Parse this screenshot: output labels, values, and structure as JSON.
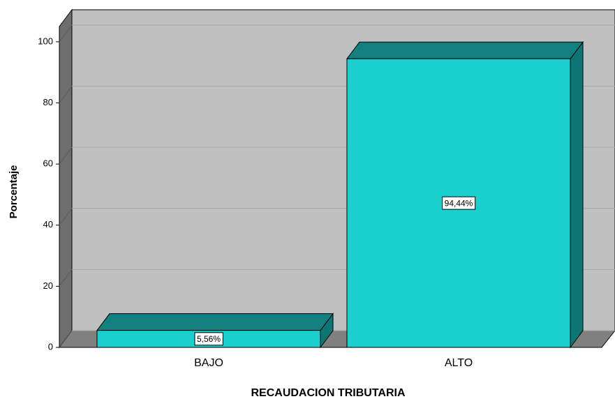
{
  "chart_data": {
    "type": "bar3d",
    "x_label": "RECAUDACION TRIBUTARIA",
    "y_label": "Porcentaje",
    "categories": [
      "BAJO",
      "ALTO"
    ],
    "values": [
      5.56,
      94.44
    ],
    "value_labels": [
      "5,56%",
      "94,44%"
    ],
    "color": "#1ccfcf",
    "ylim": [
      0,
      105
    ],
    "yticks": [
      0,
      20,
      40,
      60,
      80,
      100
    ],
    "grid": true
  }
}
